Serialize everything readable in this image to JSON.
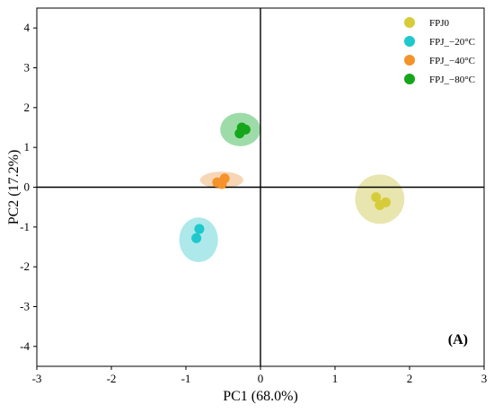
{
  "chart_data": {
    "type": "scatter",
    "xlabel": "PC1 (68.0%)",
    "ylabel": "PC2 (17.2%)",
    "xlim": [
      -3,
      3
    ],
    "ylim": [
      -4.5,
      4.5
    ],
    "xticks": [
      -3,
      -2,
      -1,
      0,
      1,
      2,
      3
    ],
    "yticks": [
      -4,
      -3,
      -2,
      -1,
      0,
      1,
      2,
      3,
      4
    ],
    "annotation": "(A)",
    "grid": false,
    "legend": "top-right",
    "zero_lines": true,
    "series": [
      {
        "name": "FPJ0",
        "color": "#d6cc3a",
        "ellipse_color": "#e4e0a0",
        "points": [
          [
            1.55,
            -0.25
          ],
          [
            1.6,
            -0.45
          ],
          [
            1.68,
            -0.38
          ]
        ],
        "ellipse": {
          "cx": 1.6,
          "cy": -0.3,
          "rx": 0.33,
          "ry": 0.62
        }
      },
      {
        "name": "FPJ_−20°C",
        "color": "#1ec8cc",
        "ellipse_color": "#9fe4e6",
        "points": [
          [
            -0.82,
            -1.05
          ],
          [
            -0.86,
            -1.28
          ]
        ],
        "ellipse": {
          "cx": -0.83,
          "cy": -1.32,
          "rx": 0.26,
          "ry": 0.56
        }
      },
      {
        "name": "FPJ_−40°C",
        "color": "#f5922a",
        "ellipse_color": "#f6cfa8",
        "points": [
          [
            -0.48,
            0.22
          ],
          [
            -0.58,
            0.12
          ],
          [
            -0.52,
            0.08
          ]
        ],
        "ellipse": {
          "cx": -0.52,
          "cy": 0.18,
          "rx": 0.29,
          "ry": 0.21
        }
      },
      {
        "name": "FPJ_−80°C",
        "color": "#16a61b",
        "ellipse_color": "#8cd69a",
        "points": [
          [
            -0.25,
            1.5
          ],
          [
            -0.28,
            1.35
          ],
          [
            -0.2,
            1.45
          ]
        ],
        "ellipse": {
          "cx": -0.27,
          "cy": 1.45,
          "rx": 0.27,
          "ry": 0.42
        }
      }
    ]
  }
}
